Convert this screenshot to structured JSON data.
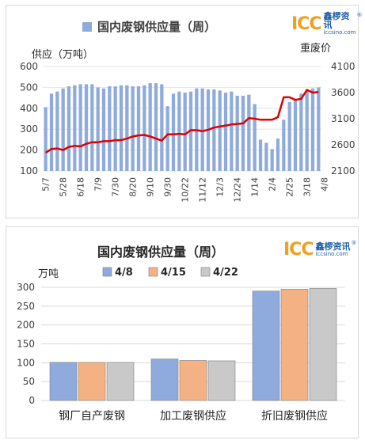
{
  "chart_data": [
    {
      "type": "bar+line",
      "title": "国内废钢供应量（周）",
      "legend": "top",
      "left_axis_label": "供应（万吨）",
      "right_axis_label": "重废价",
      "left_ylim": [
        100,
        600
      ],
      "left_ticks": [
        "100",
        "200",
        "300",
        "400",
        "500",
        "600"
      ],
      "right_ylim": [
        2100,
        4100
      ],
      "right_ticks": [
        "2100",
        "2600",
        "3100",
        "3600",
        "4100"
      ],
      "x_tick_labels": [
        "5/7",
        "5/28",
        "6/18",
        "7/9",
        "7/30",
        "8/20",
        "9/10",
        "9/30",
        "10/22",
        "11/12",
        "12/3",
        "12/24",
        "1/14",
        "2/4",
        "2/25",
        "3/18",
        "4/8"
      ],
      "series": [
        {
          "name": "国内废钢供应量（周）",
          "type": "bar",
          "color": "#8faadc",
          "values": [
            405,
            470,
            480,
            495,
            505,
            510,
            515,
            515,
            515,
            500,
            495,
            505,
            505,
            510,
            510,
            505,
            505,
            510,
            520,
            520,
            515,
            410,
            470,
            480,
            475,
            480,
            495,
            495,
            490,
            490,
            485,
            475,
            480,
            460,
            460,
            465,
            420,
            250,
            235,
            205,
            255,
            345,
            430,
            440,
            470,
            490,
            495,
            500
          ]
        },
        {
          "type": "line",
          "color": "#e00000",
          "values": [
            2450,
            2520,
            2530,
            2500,
            2560,
            2580,
            2570,
            2620,
            2650,
            2650,
            2670,
            2670,
            2690,
            2690,
            2720,
            2760,
            2780,
            2790,
            2760,
            2720,
            2680,
            2800,
            2800,
            2810,
            2800,
            2880,
            2880,
            2860,
            2890,
            2930,
            2950,
            2970,
            2990,
            3000,
            3010,
            3110,
            3100,
            3080,
            3080,
            3080,
            3130,
            3510,
            3510,
            3460,
            3480,
            3650,
            3600,
            3610
          ]
        }
      ]
    },
    {
      "type": "bar",
      "title": "国内废钢供应量（周）",
      "ylabel": "万吨",
      "ylim": [
        0,
        300
      ],
      "ticks": [
        "0",
        "50",
        "100",
        "150",
        "200",
        "250",
        "300"
      ],
      "legend": "top",
      "categories": [
        "钢厂自产废钢",
        "加工废钢供应",
        "折旧废钢供应"
      ],
      "series": [
        {
          "name": "4/8",
          "color": "#8faadc",
          "values": [
            101,
            110,
            290
          ]
        },
        {
          "name": "4/15",
          "color": "#f4b183",
          "values": [
            101,
            106,
            295
          ]
        },
        {
          "name": "4/22",
          "color": "#c9c9c9",
          "values": [
            101,
            105,
            297
          ]
        }
      ]
    }
  ],
  "logo": {
    "mark": "ICC",
    "cn": "鑫椤资讯",
    "en": "iccsino.com",
    "reg": "®"
  }
}
